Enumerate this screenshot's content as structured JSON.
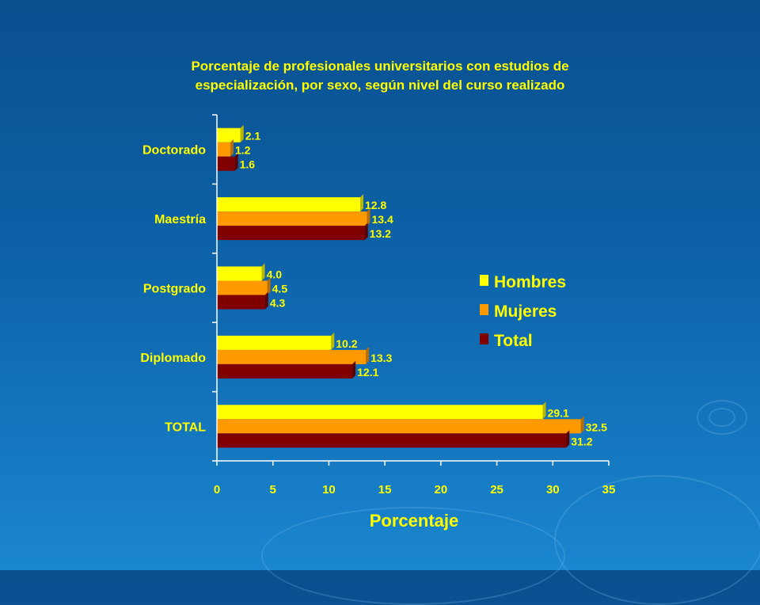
{
  "chart_data": {
    "type": "bar",
    "orientation": "horizontal",
    "title": "Porcentaje de profesionales universitarios con estudios de especialización, por sexo, según nivel del curso realizado",
    "title_lines": [
      "Porcentaje de profesionales universitarios con estudios de",
      "especialización, por sexo, según nivel del curso realizado"
    ],
    "xlabel": "Porcentaje",
    "ylabel": "",
    "xlim": [
      0,
      35
    ],
    "xticks": [
      "0",
      "5",
      "10",
      "15",
      "20",
      "25",
      "30",
      "35"
    ],
    "grid": false,
    "legend_position": "right",
    "categories": [
      "Doctorado",
      "Maestría",
      "Postgrado",
      "Diplomado",
      "TOTAL"
    ],
    "series": [
      {
        "name": "Hombres",
        "color": "#ffff00",
        "values": [
          2.1,
          12.8,
          4.0,
          10.2,
          29.1
        ],
        "labels": [
          "2.1",
          "12.8",
          "4.0",
          "10.2",
          "29.1"
        ]
      },
      {
        "name": "Mujeres",
        "color": "#ff9900",
        "values": [
          1.2,
          13.4,
          4.5,
          13.3,
          32.5
        ],
        "labels": [
          "1.2",
          "13.4",
          "4.5",
          "13.3",
          "32.5"
        ]
      },
      {
        "name": "Total",
        "color": "#800000",
        "values": [
          1.6,
          13.2,
          4.3,
          12.1,
          31.2
        ],
        "labels": [
          "1.6",
          "13.2",
          "4.3",
          "12.1",
          "31.2"
        ]
      }
    ]
  }
}
